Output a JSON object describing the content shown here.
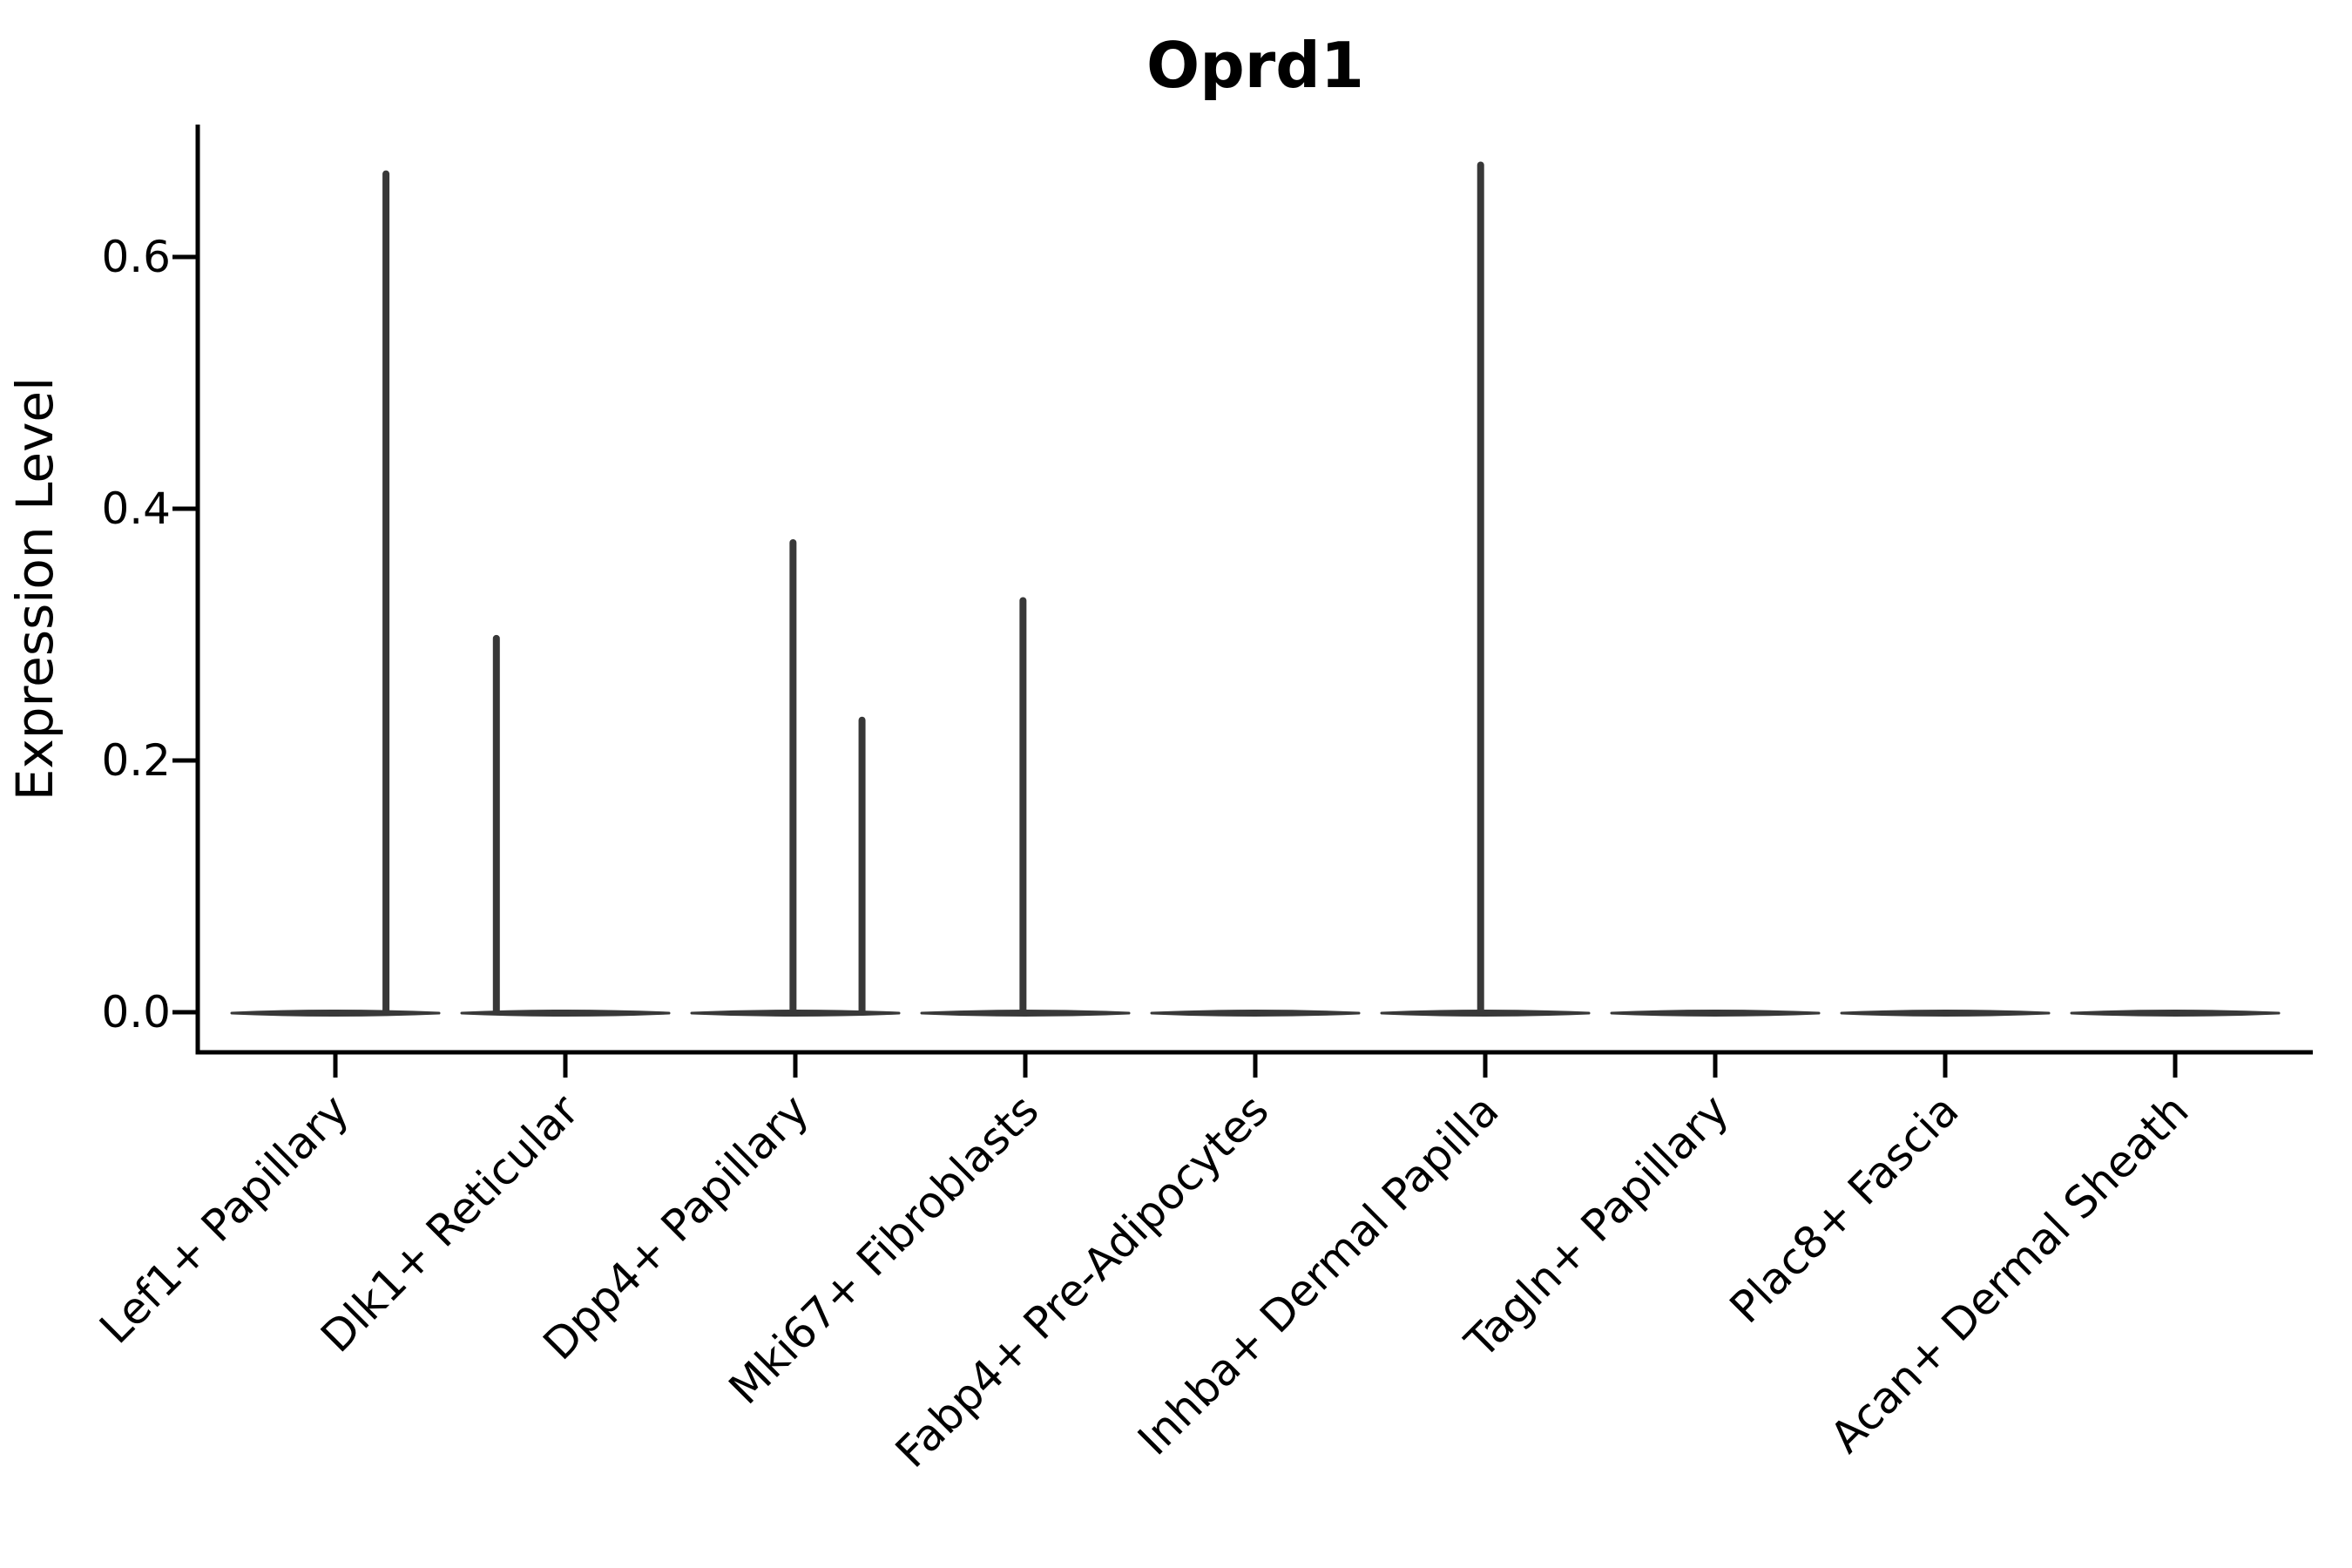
{
  "chart_data": {
    "type": "violin",
    "title": "Oprd1",
    "ylabel": "Expression Level",
    "xlabel": "",
    "y_ticks": [
      "0.0",
      "0.2",
      "0.4",
      "0.6"
    ],
    "y_tick_values": [
      0.0,
      0.2,
      0.4,
      0.6
    ],
    "ylim": [
      -0.032,
      0.704
    ],
    "grid": false,
    "legend": "none",
    "categories": [
      "Lef1+ Papillary",
      "Dlk1+ Reticular",
      "Dpp4+ Papillary",
      "Mki67+ Fibroblasts",
      "Fabp4+ Pre-Adipocytes",
      "Inhba+ Dermal Papilla",
      "Tagln+ Papillary",
      "Plac8+ Fascia",
      "Acan+ Dermal Sheath"
    ],
    "series": [
      {
        "name": "Lef1+ Papillary",
        "baseline_value": 0.0,
        "max_value": 0.666,
        "spikes": [
          {
            "value": 0.666,
            "x_offset_units": 0.22
          }
        ]
      },
      {
        "name": "Dlk1+ Reticular",
        "baseline_value": 0.0,
        "max_value": 0.297,
        "spikes": [
          {
            "value": 0.297,
            "x_offset_units": -0.3
          }
        ]
      },
      {
        "name": "Dpp4+ Papillary",
        "baseline_value": 0.0,
        "max_value": 0.373,
        "spikes": [
          {
            "value": 0.373,
            "x_offset_units": -0.01
          },
          {
            "value": 0.232,
            "x_offset_units": 0.29
          }
        ]
      },
      {
        "name": "Mki67+ Fibroblasts",
        "baseline_value": 0.0,
        "max_value": 0.327,
        "spikes": [
          {
            "value": 0.327,
            "x_offset_units": -0.01
          }
        ]
      },
      {
        "name": "Fabp4+ Pre-Adipocytes",
        "baseline_value": 0.0,
        "max_value": 0.0,
        "spikes": []
      },
      {
        "name": "Inhba+ Dermal Papilla",
        "baseline_value": 0.0,
        "max_value": 0.673,
        "spikes": [
          {
            "value": 0.673,
            "x_offset_units": -0.02
          }
        ]
      },
      {
        "name": "Tagln+ Papillary",
        "baseline_value": 0.0,
        "max_value": 0.0,
        "spikes": []
      },
      {
        "name": "Plac8+ Fascia",
        "baseline_value": 0.0,
        "max_value": 0.0,
        "spikes": []
      },
      {
        "name": "Acan+ Dermal Sheath",
        "baseline_value": 0.0,
        "max_value": 0.0,
        "spikes": []
      }
    ],
    "violin_width_units": 0.9,
    "colors": {
      "violin": "#383838",
      "axis": "#000000",
      "text": "#000000",
      "background": "#ffffff"
    }
  }
}
